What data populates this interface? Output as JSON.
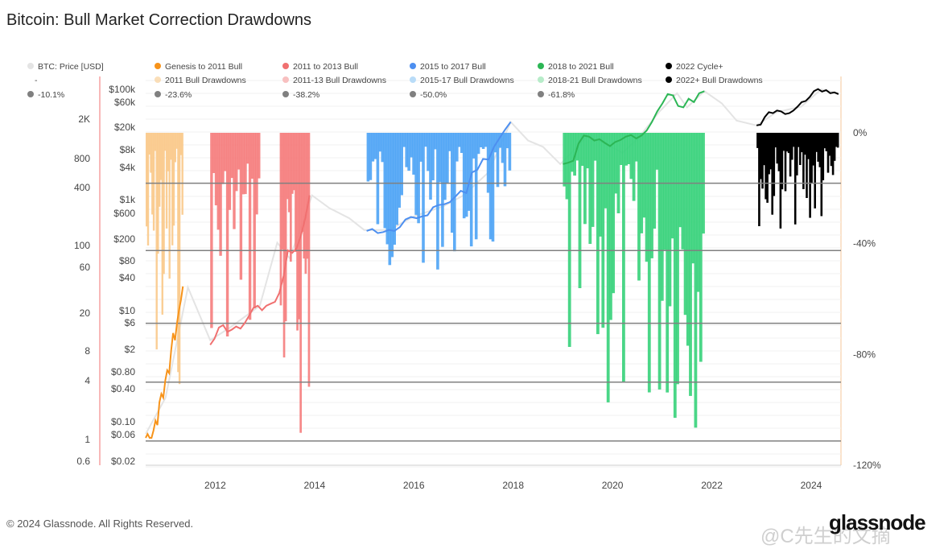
{
  "title": "Bitcoin: Bull Market Correction Drawdowns",
  "footer": {
    "copyright": "© 2024 Glassnode. All Rights Reserved.",
    "brand": "glassnode"
  },
  "watermark": "@C先生的文摘",
  "colors": {
    "genesis": "#f7931a",
    "b2013": "#f07070",
    "b2017": "#4d8ff0",
    "b2021": "#2cb655",
    "b2022": "#000000",
    "d2011": "#f9c98a",
    "d2013": "#f57c7c",
    "d2017": "#4da3f5",
    "d2021": "#36d27a",
    "d2022": "#000000",
    "price": "#e4e4e4",
    "level": "#808080"
  },
  "chart_data": {
    "type": "line",
    "title": "Bitcoin: Bull Market Correction Drawdowns",
    "x_ticks": [
      "2012",
      "2014",
      "2016",
      "2018",
      "2020",
      "2022",
      "2024"
    ],
    "xlim": [
      2010.6,
      2024.6
    ],
    "y_left_outer_ticks": [
      "2K",
      "800",
      "400",
      "100",
      "60",
      "20",
      "8",
      "4",
      "1",
      "0.6"
    ],
    "y_left_inner_ticks": [
      "$100k",
      "$60k",
      "$20k",
      "$8k",
      "$4k",
      "$1k",
      "$600",
      "$200",
      "$80",
      "$40",
      "$10",
      "$6",
      "$2",
      "$0.80",
      "$0.40",
      "$0.10",
      "$0.06",
      "$0.02"
    ],
    "y_right_ticks": [
      "0%",
      "-40%",
      "-80%",
      "-120%"
    ],
    "drawdown_range": [
      -120,
      0
    ],
    "threshold_levels": [
      -10.1,
      -23.6,
      -38.2,
      -50.0,
      -61.8
    ],
    "legend": {
      "row1": [
        "BTC: Price [USD]",
        "Genesis to 2011 Bull",
        "2011 to 2013 Bull",
        "2015 to 2017 Bull",
        "2018 to 2021 Bull",
        "2022 Cycle+"
      ],
      "row2": [
        "-",
        "2011 Bull Drawdowns",
        "2011-13 Bull Drawdowns",
        "2015-17 Bull Drawdowns",
        "2018-21 Bull Drawdowns",
        "2022+ Bull Drawdowns"
      ],
      "row3": [
        "-10.1%",
        "-23.6%",
        "-38.2%",
        "-50.0%",
        "-61.8%",
        "-"
      ]
    },
    "series": [
      {
        "name": "Genesis to 2011 Bull",
        "color_key": "genesis",
        "x_range": [
          2010.6,
          2011.35
        ],
        "values": [
          0.06,
          0.07,
          0.06,
          0.06,
          0.08,
          0.12,
          0.1,
          0.25,
          0.35,
          0.3,
          0.6,
          0.9,
          0.8,
          2.0,
          4.0,
          3.0,
          6.0,
          10,
          15,
          26
        ]
      },
      {
        "name": "2011 to 2013 Bull",
        "color_key": "b2013",
        "x_range": [
          2011.9,
          2013.9
        ],
        "values": [
          2.5,
          3.2,
          5.0,
          5.5,
          4.2,
          4.6,
          5.2,
          4.8,
          6.0,
          8.0,
          11,
          12,
          10,
          12,
          13,
          14,
          20,
          40,
          110,
          100,
          120,
          200,
          400,
          1000
        ]
      },
      {
        "name": "2015 to 2017 Bull",
        "color_key": "b2017",
        "x_range": [
          2015.05,
          2017.95
        ],
        "values": [
          240,
          260,
          220,
          230,
          250,
          240,
          280,
          380,
          420,
          400,
          430,
          450,
          620,
          680,
          700,
          760,
          950,
          1200,
          1100,
          2500,
          2800,
          4300,
          4200,
          7000,
          10000,
          14000,
          19000
        ]
      },
      {
        "name": "2018 to 2021 Bull",
        "color_key": "b2021",
        "x_range": [
          2019.0,
          2021.85
        ],
        "values": [
          3500,
          3700,
          4000,
          8000,
          11000,
          10500,
          9000,
          9500,
          8200,
          7200,
          8500,
          9200,
          10500,
          11200,
          9800,
          11000,
          13500,
          19000,
          29000,
          40000,
          58000,
          55000,
          36000,
          34000,
          48000,
          42000,
          60000,
          65000
        ]
      },
      {
        "name": "2022 Cycle+",
        "color_key": "b2022",
        "x_range": [
          2022.9,
          2024.55
        ],
        "values": [
          16500,
          17000,
          23000,
          28000,
          27000,
          30000,
          29000,
          26000,
          27000,
          30000,
          35000,
          42000,
          44000,
          52000,
          65000,
          71000,
          64000,
          68000,
          60000,
          62000,
          58000
        ]
      }
    ]
  }
}
